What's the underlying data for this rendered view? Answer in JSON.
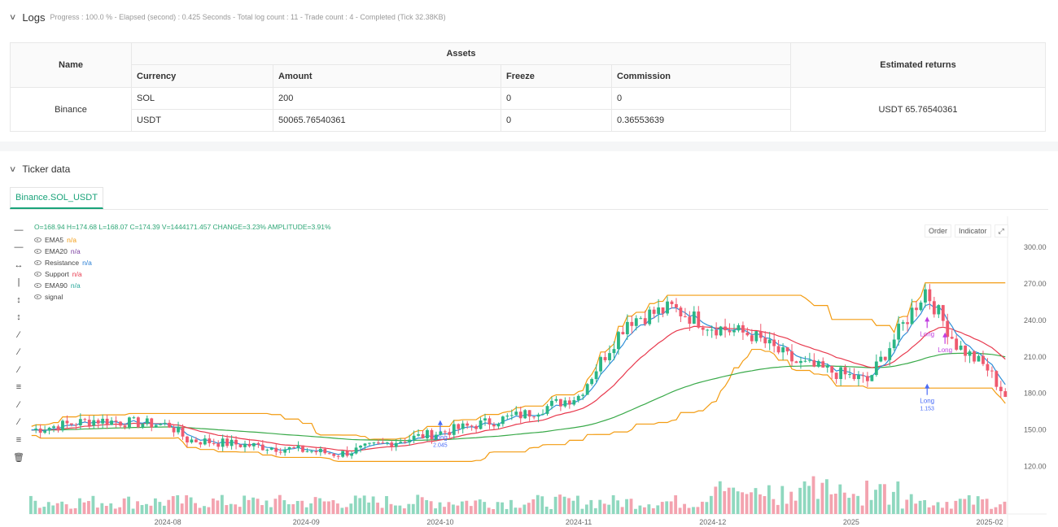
{
  "logs": {
    "title": "Logs",
    "meta": "Progress : 100.0 % - Elapsed (second) : 0.425  Seconds - Total log count : 11 - Trade count : 4 - Completed (Tick 32.38KB)"
  },
  "assets_table": {
    "name_header": "Name",
    "assets_header": "Assets",
    "returns_header": "Estimated returns",
    "columns": [
      "Currency",
      "Amount",
      "Freeze",
      "Commission"
    ],
    "exchange": "Binance",
    "rows": [
      {
        "currency": "SOL",
        "amount": "200",
        "freeze": "0",
        "commission": "0"
      },
      {
        "currency": "USDT",
        "amount": "50065.76540361",
        "freeze": "0",
        "commission": "0.36553639"
      }
    ],
    "estimated_returns": "USDT 65.76540361"
  },
  "ticker": {
    "title": "Ticker data",
    "tab": "Binance.SOL_USDT"
  },
  "chart_header": {
    "ohlc": "O=168.94 H=174.68 L=168.07 C=174.39 V=1444171.457 CHANGE=3.23% AMPLITUDE=3.91%",
    "legend": [
      {
        "name": "EMA5",
        "value": "n/a",
        "color": "#f39c12"
      },
      {
        "name": "EMA20",
        "value": "n/a",
        "color": "#7b3fa0"
      },
      {
        "name": "Resistance",
        "value": "n/a",
        "color": "#2a7fd4"
      },
      {
        "name": "Support",
        "value": "n/a",
        "color": "#e8394d"
      },
      {
        "name": "EMA90",
        "value": "n/a",
        "color": "#26a69a"
      },
      {
        "name": "signal",
        "value": "",
        "color": "#444"
      }
    ],
    "buttons": [
      "Order",
      "Indicator"
    ]
  },
  "chart_data": {
    "type": "candlestick",
    "x_ticks": [
      "2024-08",
      "2024-09",
      "2024-10",
      "2024-11",
      "2024-12",
      "2025",
      "2025-02"
    ],
    "y_ticks": [
      "300.0000",
      "270.0000",
      "240.0000",
      "210.0000",
      "180.0000",
      "150.0000",
      "120.0000"
    ],
    "ylim": [
      105,
      312
    ],
    "colors": {
      "up": "#2bb685",
      "down": "#ef5a6f",
      "ema5": "#2f8fd8",
      "ema20": "#e8394d",
      "ema90": "#3aaa4a",
      "bands": "#f39c12",
      "signal": "#4a6cf7",
      "signal2": "#c03fe0"
    },
    "trade_labels": [
      {
        "text": "Long",
        "sub": "2.045",
        "x": "2024-10-01",
        "y": 150
      },
      {
        "text": "Long",
        "sub": "1.153",
        "x": "2025-01-18",
        "y": 180
      },
      {
        "text": "Long",
        "sub": "",
        "x": "2025-01-18",
        "y": 235
      },
      {
        "text": "Long",
        "sub": "",
        "x": "2025-01-22",
        "y": 222
      }
    ],
    "series_close_anchors": {
      "dates": [
        "2024-07-01",
        "2024-07-15",
        "2024-08-01",
        "2024-08-05",
        "2024-08-20",
        "2024-09-01",
        "2024-09-08",
        "2024-09-20",
        "2024-10-01",
        "2024-10-10",
        "2024-10-20",
        "2024-11-01",
        "2024-11-12",
        "2024-11-22",
        "2024-12-01",
        "2024-12-10",
        "2024-12-20",
        "2024-12-31",
        "2025-01-05",
        "2025-01-18",
        "2025-01-25",
        "2025-02-01",
        "2025-02-05"
      ],
      "close": [
        150,
        158,
        154,
        142,
        137,
        133,
        130,
        140,
        148,
        155,
        163,
        178,
        240,
        250,
        235,
        228,
        205,
        195,
        190,
        265,
        220,
        200,
        178
      ]
    }
  }
}
